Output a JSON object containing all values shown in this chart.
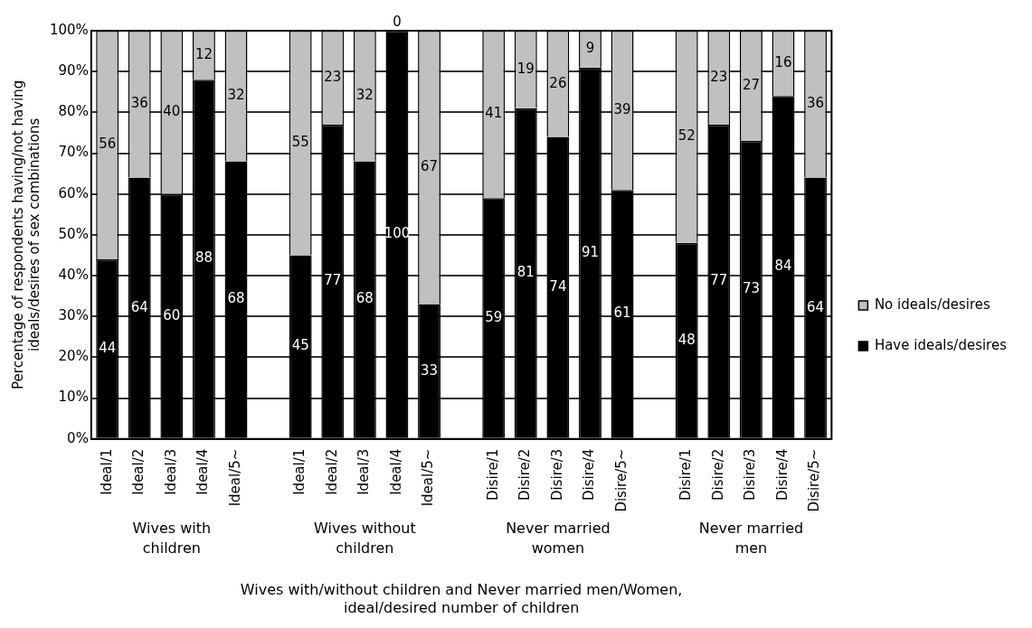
{
  "chart_data": {
    "type": "bar",
    "stacked": true,
    "xlabel": "Wives with/without children and Never married men/Women,\nideal/desired number of children",
    "ylabel": "Percentage of respondents having/not having\nideals/desires of sex combinations",
    "categories": [
      "Ideal/1",
      "Ideal/2",
      "Ideal/3",
      "Ideal/4",
      "Ideal/5~",
      null,
      "Ideal/1",
      "Ideal/2",
      "Ideal/3",
      "Ideal/4",
      "Ideal/5~",
      null,
      "Disire/1",
      "Disire/2",
      "Disire/3",
      "Disire/4",
      "Disire/5~",
      null,
      "Disire/1",
      "Disire/2",
      "Disire/3",
      "Disire/4",
      "Disire/5~"
    ],
    "series": [
      {
        "name": "Have ideals/desires",
        "color": "#000000",
        "values": [
          44,
          64,
          60,
          88,
          68,
          null,
          45,
          77,
          68,
          100,
          33,
          null,
          59,
          81,
          74,
          91,
          61,
          null,
          48,
          77,
          73,
          84,
          64
        ]
      },
      {
        "name": "No ideals/desires",
        "color": "#c0c0c0",
        "values": [
          56,
          36,
          40,
          12,
          32,
          null,
          55,
          23,
          32,
          0,
          67,
          null,
          41,
          19,
          26,
          9,
          39,
          null,
          52,
          23,
          27,
          16,
          36
        ]
      }
    ],
    "ylim": [
      0,
      100
    ],
    "yticks": [
      {
        "value": 0,
        "label": "0%"
      },
      {
        "value": 10,
        "label": "10%"
      },
      {
        "value": 20,
        "label": "20%"
      },
      {
        "value": 30,
        "label": "30%"
      },
      {
        "value": 40,
        "label": "40%"
      },
      {
        "value": 50,
        "label": "50%"
      },
      {
        "value": 60,
        "label": "60%"
      },
      {
        "value": 70,
        "label": "70%"
      },
      {
        "value": 80,
        "label": "80%"
      },
      {
        "value": 90,
        "label": "90%"
      },
      {
        "value": 100,
        "label": "100%"
      }
    ],
    "grid": "y",
    "legend": "right",
    "data_labels": true,
    "annotations": [
      "Wives with\nchildren",
      "Wives without\nchildren",
      "Never married\nwomen",
      "Never married\nmen"
    ]
  }
}
